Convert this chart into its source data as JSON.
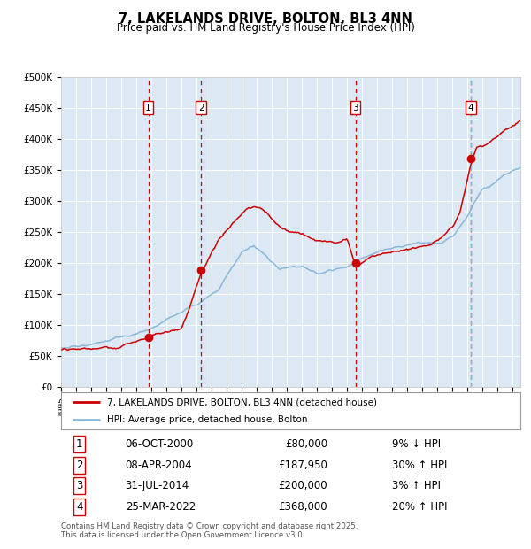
{
  "title": "7, LAKELANDS DRIVE, BOLTON, BL3 4NN",
  "subtitle": "Price paid vs. HM Land Registry's House Price Index (HPI)",
  "background_color": "#ffffff",
  "plot_bg_color": "#dce9f5",
  "grid_color": "#ffffff",
  "red_line_color": "#cc0000",
  "blue_line_color": "#8ab8d8",
  "sale_marker_color": "#cc0000",
  "vline_color_red": "#cc0000",
  "vline_color_blue": "#8ab8d8",
  "ylim": [
    0,
    500000
  ],
  "yticks": [
    0,
    50000,
    100000,
    150000,
    200000,
    250000,
    300000,
    350000,
    400000,
    450000,
    500000
  ],
  "ytick_labels": [
    "£0",
    "£50K",
    "£100K",
    "£150K",
    "£200K",
    "£250K",
    "£300K",
    "£350K",
    "£400K",
    "£450K",
    "£500K"
  ],
  "sale_prices": [
    80000,
    187950,
    200000,
    368000
  ],
  "sale_labels": [
    "1",
    "2",
    "3",
    "4"
  ],
  "sale_date_strs": [
    "06-OCT-2000",
    "08-APR-2004",
    "31-JUL-2014",
    "25-MAR-2022"
  ],
  "row_prices": [
    "£80,000",
    "£187,950",
    "£200,000",
    "£368,000"
  ],
  "sale_hpi_pcts": [
    "9% ↓ HPI",
    "30% ↑ HPI",
    "3% ↑ HPI",
    "20% ↑ HPI"
  ],
  "legend_line1": "7, LAKELANDS DRIVE, BOLTON, BL3 4NN (detached house)",
  "legend_line2": "HPI: Average price, detached house, Bolton",
  "footnote": "Contains HM Land Registry data © Crown copyright and database right 2025.\nThis data is licensed under the Open Government Licence v3.0."
}
